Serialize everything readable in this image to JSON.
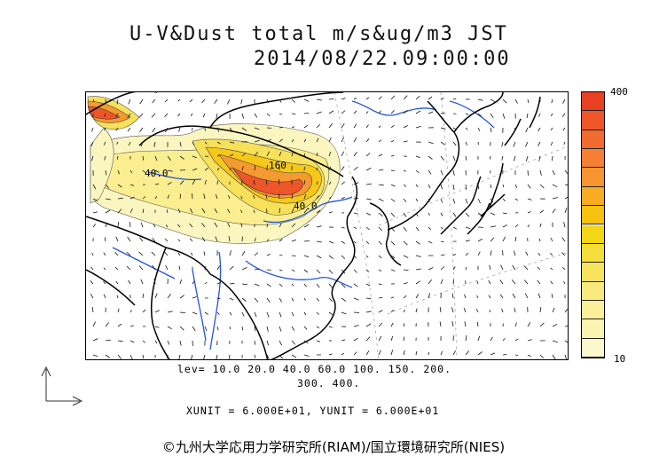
{
  "header": {
    "title_line1": "U-V&Dust total m/s&ug/m3 JST",
    "title_line2": "2014/08/22.09:00:00"
  },
  "colorbar": {
    "max_label": "400",
    "min_label": "10",
    "colors": [
      "#fbf8cc",
      "#fbf4b0",
      "#fbef99",
      "#f9ea7e",
      "#f7e45c",
      "#f5de3a",
      "#f3d614",
      "#f6c20f",
      "#f7ac21",
      "#f79530",
      "#f57f33",
      "#f26a2e",
      "#ee5529",
      "#e93f22"
    ]
  },
  "legend": {
    "levels_line1": "lev= 10.0 20.0 40.0 60.0 100. 150. 200.",
    "levels_line2": "300. 400.",
    "units": "XUNIT = 6.000E+01, YUNIT = 6.000E+01"
  },
  "map": {
    "contour_labels": [
      "40.0",
      "160",
      "40.0"
    ],
    "colors": {
      "coast": "#000000",
      "river": "#2255dd",
      "grid": "#888888"
    }
  },
  "footer": {
    "copyright": "©九州大学応用力学研究所(RIAM)/国立環境研究所(NIES)"
  }
}
